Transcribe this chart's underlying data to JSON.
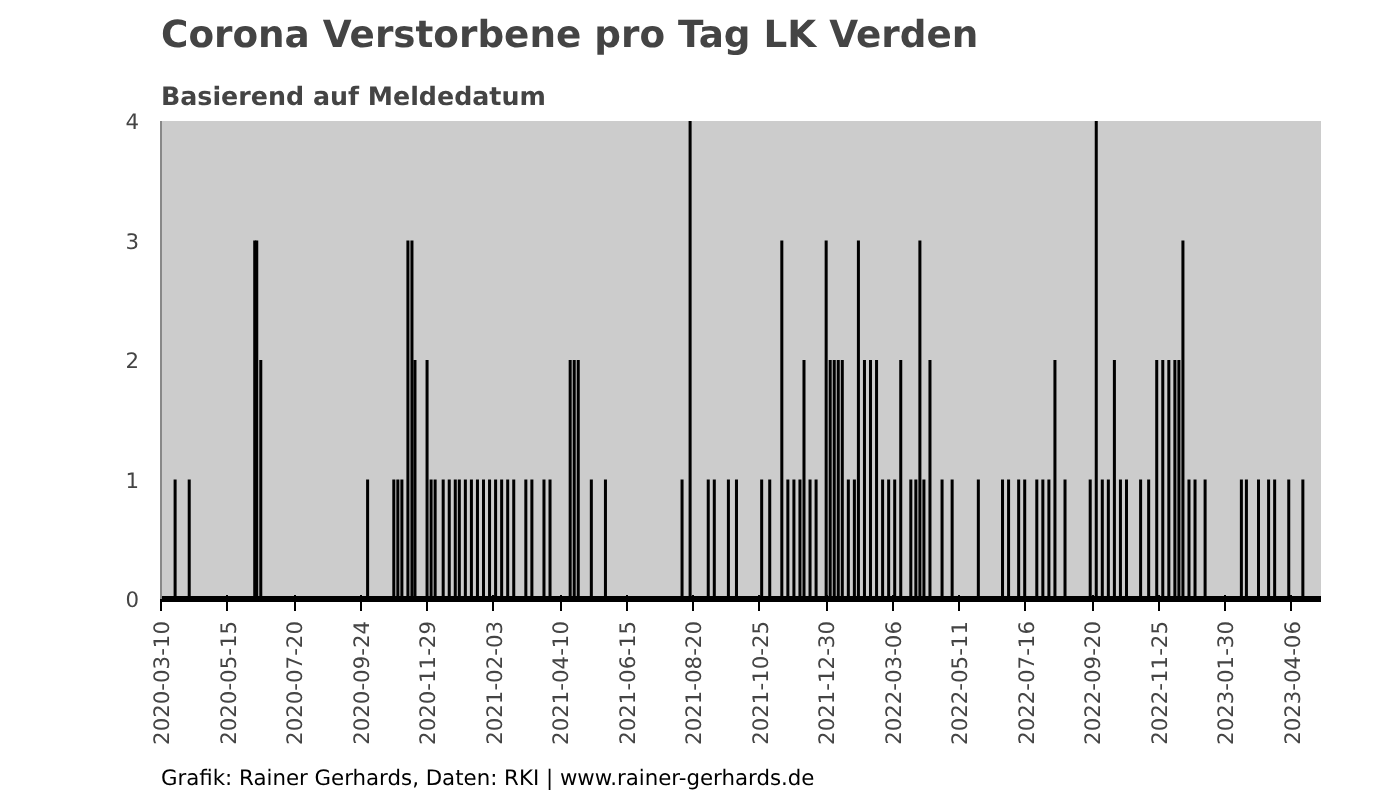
{
  "chart_data": {
    "type": "bar",
    "title": "Corona Verstorbene pro Tag LK Verden",
    "subtitle": "Basierend auf Meldedatum",
    "annotations": [
      "Grafik: Rainer Gerhards, Daten: RKI | www.rainer-gerhards.de"
    ],
    "x": [
      "2020-03-24",
      "2020-04-07",
      "2020-06-11",
      "2020-06-13",
      "2020-06-17",
      "2020-10-01",
      "2020-10-27",
      "2020-10-31",
      "2020-11-04",
      "2020-11-10",
      "2020-11-14",
      "2020-11-17",
      "2020-11-29",
      "2020-12-03",
      "2020-12-07",
      "2020-12-15",
      "2020-12-21",
      "2020-12-27",
      "2020-12-31",
      "2021-01-06",
      "2021-01-12",
      "2021-01-18",
      "2021-01-24",
      "2021-01-30",
      "2021-02-05",
      "2021-02-11",
      "2021-02-17",
      "2021-02-23",
      "2021-03-07",
      "2021-03-13",
      "2021-03-25",
      "2021-03-31",
      "2021-04-20",
      "2021-04-24",
      "2021-04-28",
      "2021-05-11",
      "2021-05-25",
      "2021-08-09",
      "2021-08-17",
      "2021-09-04",
      "2021-09-10",
      "2021-09-24",
      "2021-10-02",
      "2021-10-27",
      "2021-11-04",
      "2021-11-16",
      "2021-11-22",
      "2021-11-28",
      "2021-12-04",
      "2021-12-08",
      "2021-12-14",
      "2021-12-20",
      "2021-12-30",
      "2022-01-03",
      "2022-01-07",
      "2022-01-11",
      "2022-01-15",
      "2022-01-21",
      "2022-01-27",
      "2022-01-31",
      "2022-02-06",
      "2022-02-12",
      "2022-02-18",
      "2022-02-24",
      "2022-03-02",
      "2022-03-08",
      "2022-03-14",
      "2022-03-24",
      "2022-03-29",
      "2022-04-02",
      "2022-04-06",
      "2022-04-12",
      "2022-04-24",
      "2022-05-04",
      "2022-05-30",
      "2022-06-23",
      "2022-06-29",
      "2022-07-09",
      "2022-07-15",
      "2022-07-27",
      "2022-08-02",
      "2022-08-08",
      "2022-08-14",
      "2022-08-24",
      "2022-09-18",
      "2022-09-24",
      "2022-09-30",
      "2022-10-06",
      "2022-10-12",
      "2022-10-18",
      "2022-10-24",
      "2022-11-07",
      "2022-11-15",
      "2022-11-23",
      "2022-11-29",
      "2022-12-05",
      "2022-12-11",
      "2022-12-15",
      "2022-12-19",
      "2022-12-25",
      "2022-12-31",
      "2023-01-10",
      "2023-02-15",
      "2023-02-20",
      "2023-03-04",
      "2023-03-14",
      "2023-03-20",
      "2023-04-03",
      "2023-04-17"
    ],
    "values": [
      1,
      1,
      3,
      3,
      2,
      1,
      1,
      1,
      1,
      3,
      3,
      2,
      2,
      1,
      1,
      1,
      1,
      1,
      1,
      1,
      1,
      1,
      1,
      1,
      1,
      1,
      1,
      1,
      1,
      1,
      1,
      1,
      2,
      2,
      2,
      1,
      1,
      1,
      4,
      1,
      1,
      1,
      1,
      1,
      1,
      3,
      1,
      1,
      1,
      2,
      1,
      1,
      3,
      2,
      2,
      2,
      2,
      1,
      1,
      3,
      2,
      2,
      2,
      1,
      1,
      1,
      2,
      1,
      1,
      3,
      1,
      2,
      1,
      1,
      1,
      1,
      1,
      1,
      1,
      1,
      1,
      1,
      2,
      1,
      1,
      4,
      1,
      1,
      2,
      1,
      1,
      1,
      1,
      2,
      2,
      2,
      2,
      2,
      3,
      1,
      1,
      1,
      1,
      1,
      1,
      1,
      1,
      1,
      1
    ],
    "color": "#000000",
    "xlim": [
      "2020-03-10",
      "2023-05-05"
    ],
    "xticks": [
      "2020-03-10",
      "2020-05-15",
      "2020-07-20",
      "2020-09-24",
      "2020-11-29",
      "2021-02-03",
      "2021-04-10",
      "2021-06-15",
      "2021-08-20",
      "2021-10-25",
      "2021-12-30",
      "2022-03-06",
      "2022-05-11",
      "2022-07-16",
      "2022-09-20",
      "2022-11-25",
      "2023-01-30",
      "2023-04-06"
    ],
    "ylim": [
      0,
      4
    ],
    "yticks": [
      0,
      1,
      2,
      3,
      4
    ],
    "grid": false
  }
}
